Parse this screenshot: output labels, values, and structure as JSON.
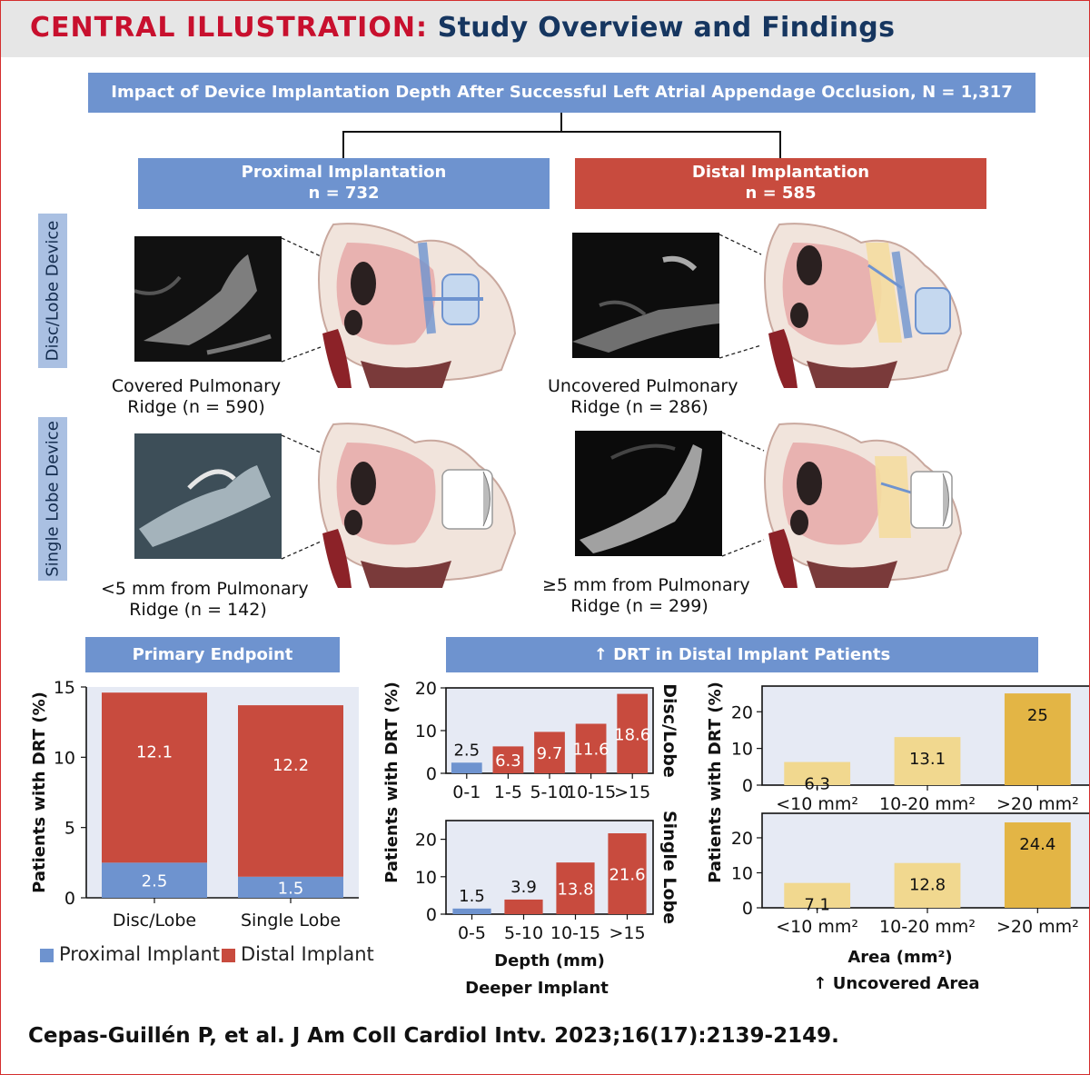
{
  "header": {
    "title_part1": "CENTRAL ILLUSTRATION:",
    "title_part2": "Study Overview and Findings"
  },
  "top_box": "Impact of Device Implantation Depth After Successful Left Atrial Appendage Occlusion, N = 1,317",
  "groups": {
    "proximal": {
      "title": "Proximal Implantation",
      "n": "n = 732"
    },
    "distal": {
      "title": "Distal Implantation",
      "n": "n = 585"
    }
  },
  "side_labels": {
    "disc_lobe": "Disc/Lobe Device",
    "single_lobe": "Single Lobe Device"
  },
  "captions": {
    "covered_line1": "Covered Pulmonary",
    "covered_line2": "Ridge (n = 590)",
    "uncovered_line1": "Uncovered Pulmonary",
    "uncovered_line2": "Ridge (n = 286)",
    "lt5_line1": "<5 mm from Pulmonary",
    "lt5_line2": "Ridge (n = 142)",
    "ge5_line1": "≥5 mm from Pulmonary",
    "ge5_line2": "Ridge (n = 299)"
  },
  "section_headers": {
    "primary": "Primary Endpoint",
    "drt": "↑ DRT in Distal Implant Patients"
  },
  "legend": {
    "proximal": "Proximal Implant",
    "distal": "Distal Implant"
  },
  "colors": {
    "proximal_blue": "#6e93cf",
    "distal_red": "#c84b3e",
    "header_blue": "#6e93cf",
    "side_blue": "#aac0e2",
    "chart_bg": "#e6eaf4",
    "area_light": "#f1d88f",
    "area_dark": "#e3b545",
    "title_red": "#c8102e",
    "title_navy": "#163660"
  },
  "icons": [
    "echocardiogram-image",
    "heart-cross-section-illustration",
    "up-arrow-icon"
  ],
  "chart_data": [
    {
      "id": "primary-endpoint",
      "type": "bar",
      "stacked": true,
      "title": "Primary Endpoint",
      "ylabel": "Patients with DRT (%)",
      "xlabel": "",
      "ylim": [
        0,
        15
      ],
      "yticks": [
        0,
        5,
        10,
        15
      ],
      "categories": [
        "Disc/Lobe",
        "Single Lobe"
      ],
      "series": [
        {
          "name": "Proximal Implant",
          "values": [
            2.5,
            1.5
          ]
        },
        {
          "name": "Distal Implant",
          "values": [
            12.1,
            12.2
          ]
        }
      ],
      "legend": "bottom"
    },
    {
      "id": "depth-disc-lobe",
      "type": "bar",
      "panel_label": "Disc/Lobe",
      "ylabel": "Patients with DRT (%)",
      "ylim": [
        0,
        20
      ],
      "yticks": [
        0,
        10,
        20
      ],
      "categories": [
        "0-1",
        "1-5",
        "5-10",
        "10-15",
        ">15"
      ],
      "values": [
        2.5,
        6.3,
        9.7,
        11.6,
        18.6
      ],
      "bar_groups": [
        "proximal",
        "distal",
        "distal",
        "distal",
        "distal"
      ]
    },
    {
      "id": "depth-single-lobe",
      "type": "bar",
      "panel_label": "Single Lobe",
      "ylabel": "Patients with DRT (%)",
      "xlabel": "Depth (mm)",
      "xlabel2": "Deeper Implant",
      "ylim": [
        0,
        25
      ],
      "yticks": [
        0,
        10,
        20
      ],
      "categories": [
        "0-5",
        "5-10",
        "10-15",
        ">15"
      ],
      "values": [
        1.5,
        3.9,
        13.8,
        21.6
      ],
      "bar_groups": [
        "proximal",
        "distal",
        "distal",
        "distal"
      ]
    },
    {
      "id": "area-disc-lobe",
      "type": "bar",
      "panel_label": "Disc/Lobe",
      "ylabel": "Patients with DRT (%)",
      "ylim": [
        0,
        27
      ],
      "yticks": [
        0,
        10,
        20
      ],
      "categories": [
        "<10 mm²",
        "10-20 mm²",
        ">20 mm²"
      ],
      "values": [
        6.3,
        13.1,
        25
      ],
      "bar_shades": [
        "light",
        "light",
        "dark"
      ]
    },
    {
      "id": "area-single-lobe",
      "type": "bar",
      "panel_label": "Single Lobe",
      "ylabel": "Patients with DRT (%)",
      "xlabel": "Area (mm²)",
      "xlabel2": "↑ Uncovered Area",
      "ylim": [
        0,
        27
      ],
      "yticks": [
        0,
        10,
        20
      ],
      "categories": [
        "<10 mm²",
        "10-20 mm²",
        ">20 mm²"
      ],
      "values": [
        7.1,
        12.8,
        24.4
      ],
      "bar_shades": [
        "light",
        "light",
        "dark"
      ]
    }
  ],
  "citation": "Cepas-Guillén P, et al. J Am Coll Cardiol Intv. 2023;16(17):2139-2149."
}
